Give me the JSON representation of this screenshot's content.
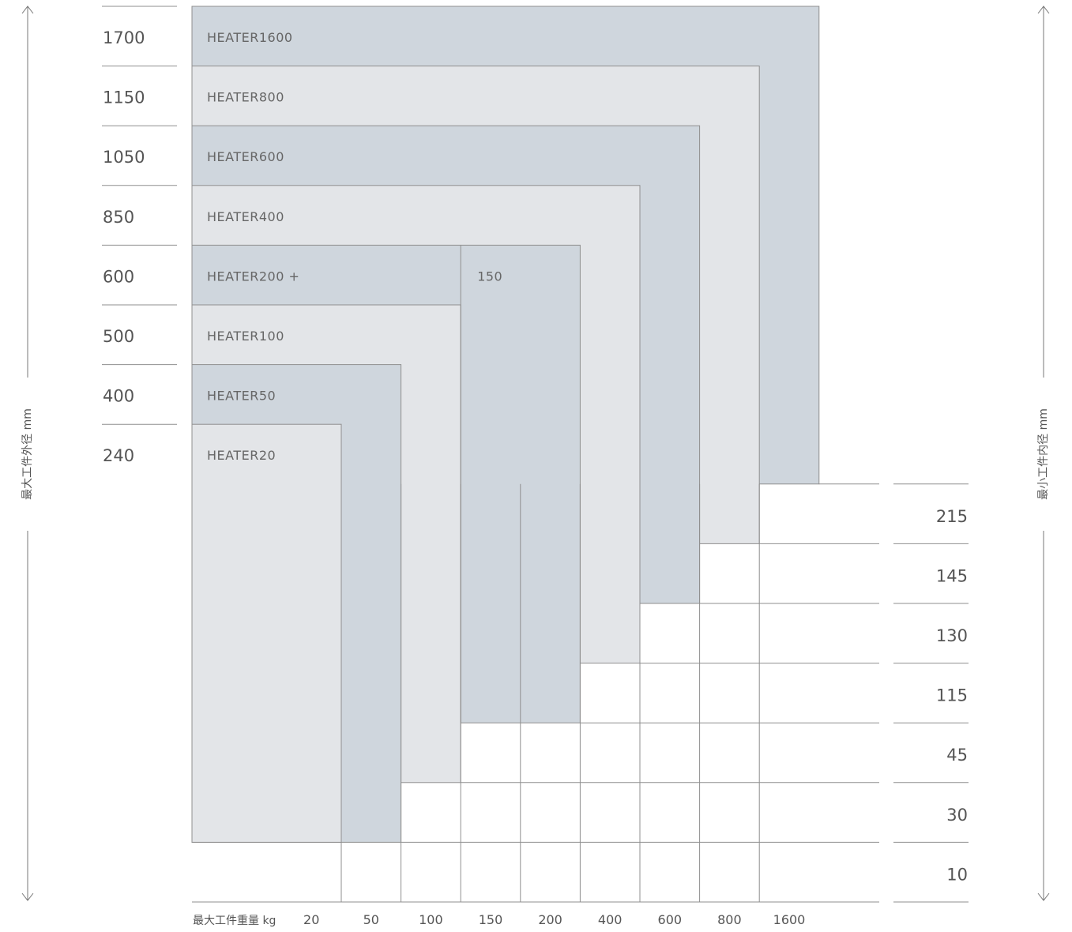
{
  "chart_data": {
    "type": "diagram",
    "left_axis_title": "最大工件外径 mm",
    "right_axis_title": "最小工件内径 mm",
    "bottom_axis_title": "最大工件重量 kg",
    "outer_diameters": [
      "1700",
      "1150",
      "1050",
      "850",
      "600",
      "500",
      "400",
      "240"
    ],
    "inner_diameters": [
      "215",
      "145",
      "130",
      "115",
      "45",
      "30",
      "10"
    ],
    "weights": [
      "20",
      "50",
      "100",
      "150",
      "200",
      "400",
      "600",
      "800",
      "1600"
    ],
    "models": [
      {
        "name": "HEATER1600",
        "max_outer_diameter_mm": 1700,
        "max_weight_kg": 1600,
        "min_inner_diameter_mm": 215,
        "color": "#cfd6dd"
      },
      {
        "name": "HEATER800",
        "max_outer_diameter_mm": 1150,
        "max_weight_kg": 800,
        "min_inner_diameter_mm": 145,
        "color": "#e3e5e8"
      },
      {
        "name": "HEATER600",
        "max_outer_diameter_mm": 1050,
        "max_weight_kg": 600,
        "min_inner_diameter_mm": 130,
        "color": "#cfd6dd"
      },
      {
        "name": "HEATER400",
        "max_outer_diameter_mm": 850,
        "max_weight_kg": 400,
        "min_inner_diameter_mm": 115,
        "color": "#e3e5e8"
      },
      {
        "name": "HEATER200 +",
        "max_outer_diameter_mm": 600,
        "max_weight_kg": 200,
        "min_inner_diameter_mm": 45,
        "color": "#cfd6dd"
      },
      {
        "name": "HEATER100",
        "max_outer_diameter_mm": 500,
        "max_weight_kg": 100,
        "min_inner_diameter_mm": 30,
        "color": "#e3e5e8"
      },
      {
        "name": "HEATER50",
        "max_outer_diameter_mm": 400,
        "max_weight_kg": 50,
        "min_inner_diameter_mm": 10,
        "color": "#cfd6dd"
      },
      {
        "name": "HEATER20",
        "max_outer_diameter_mm": 240,
        "max_weight_kg": 20,
        "min_inner_diameter_mm": 10,
        "color": "#e3e5e8"
      }
    ],
    "heater200_extension": {
      "label": "150",
      "weight_kg": 150,
      "min_inner_diameter_mm": 45
    }
  }
}
